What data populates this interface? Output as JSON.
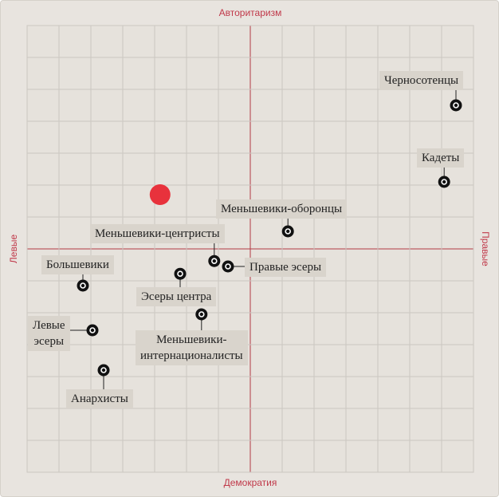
{
  "chart_data": {
    "type": "scatter",
    "axis_labels": {
      "top": "Авторитаризм",
      "bottom": "Демократия",
      "left": "Левые",
      "right": "Правые"
    },
    "labels": [
      "Черносотенцы",
      "Кадеты",
      "Меньшевики-оборонцы",
      "Меньшевики-центристы",
      "Правые эсеры",
      "Большевики",
      "Эсеры центра",
      "Меньшевики-\nинтернационалисты",
      "Левые\nэсеры",
      "Анархисты"
    ],
    "x": [
      6.45,
      6.08,
      1.18,
      -1.13,
      -0.7,
      -5.25,
      -2.2,
      -1.53,
      -4.95,
      -4.6
    ],
    "values": [
      4.5,
      2.1,
      0.55,
      -0.38,
      -0.55,
      -1.15,
      -0.78,
      -2.05,
      -2.55,
      -3.8
    ],
    "color": "#111111",
    "highlight": {
      "x": -2.83,
      "y": 1.7,
      "color": "#e8323c"
    },
    "xlim": [
      -7,
      7
    ],
    "ylim": [
      -7,
      7
    ],
    "xticks": [
      -7,
      -6,
      -5,
      -4,
      -3,
      -2,
      -1,
      0,
      1,
      2,
      3,
      4,
      5,
      6,
      7
    ],
    "yticks": [
      -7,
      -6,
      -5,
      -4,
      -3,
      -2,
      -1,
      0,
      1,
      2,
      3,
      4,
      5,
      6,
      7
    ],
    "grid": true,
    "grid_color": "#cbc7c1",
    "axis_color": "#b33a45",
    "plot_background": "#e6e2dc"
  }
}
